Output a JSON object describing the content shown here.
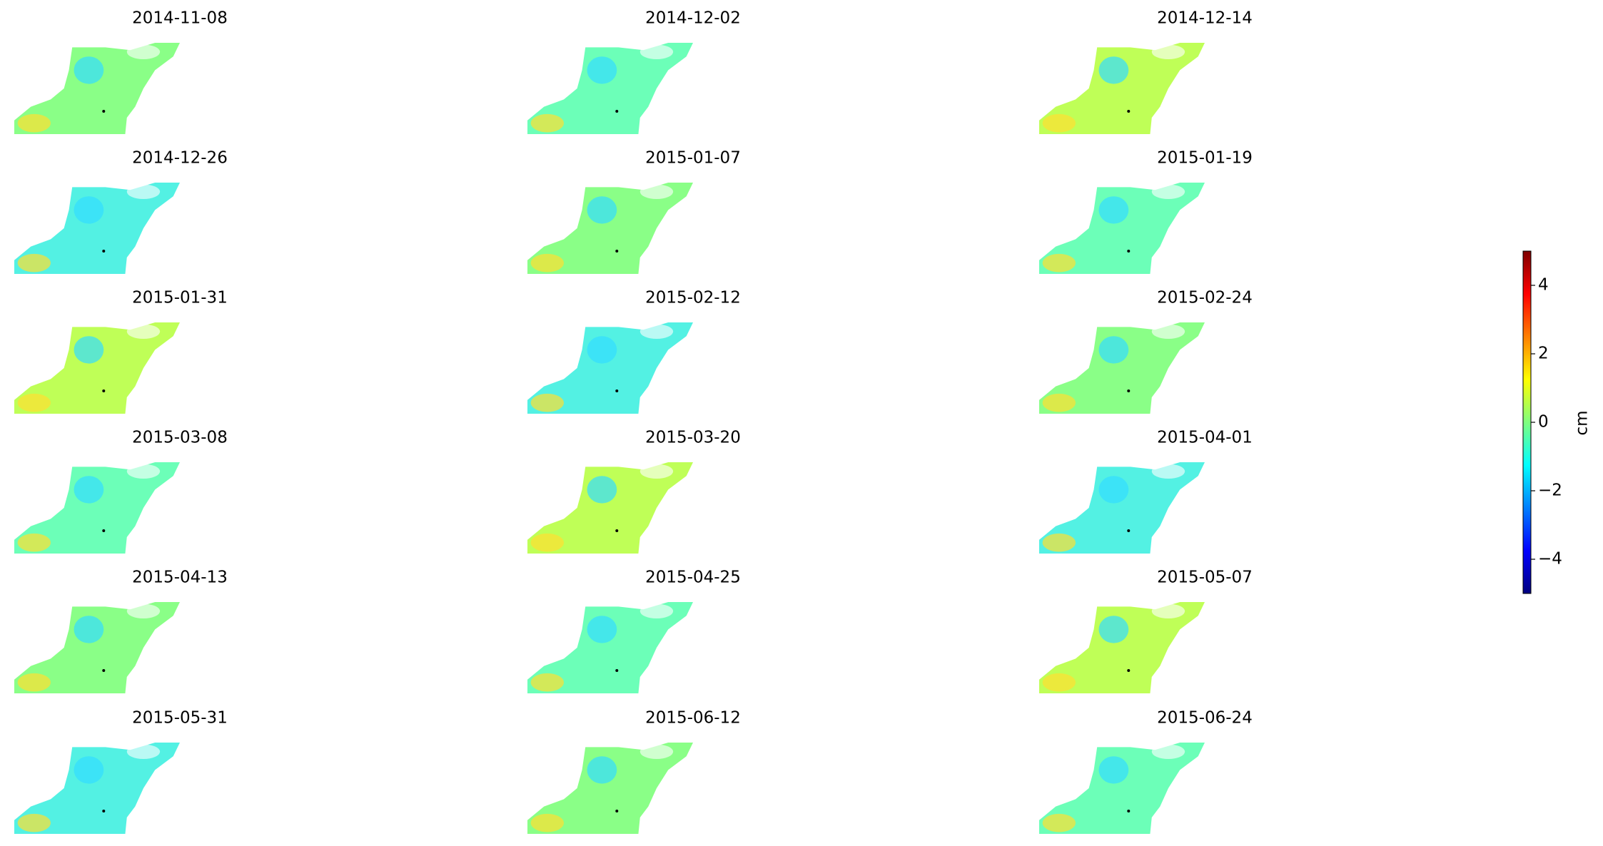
{
  "chart_data": {
    "type": "image-grid",
    "panels": [
      {
        "title": "2014-11-08"
      },
      {
        "title": "2014-12-02"
      },
      {
        "title": "2014-12-14"
      },
      {
        "title": "2014-12-26"
      },
      {
        "title": "2015-01-07"
      },
      {
        "title": "2015-01-19"
      },
      {
        "title": "2015-01-31"
      },
      {
        "title": "2015-02-12"
      },
      {
        "title": "2015-02-24"
      },
      {
        "title": "2015-03-08"
      },
      {
        "title": "2015-03-20"
      },
      {
        "title": "2015-04-01"
      },
      {
        "title": "2015-04-13"
      },
      {
        "title": "2015-04-25"
      },
      {
        "title": "2015-05-07"
      },
      {
        "title": "2015-05-31"
      },
      {
        "title": "2015-06-12"
      },
      {
        "title": "2015-06-24"
      }
    ],
    "colorbar": {
      "label": "cm",
      "colormap": "jet",
      "lim": [
        -5,
        5
      ],
      "ticks": [
        {
          "value": -4,
          "label": "−4"
        },
        {
          "value": -2,
          "label": "−2"
        },
        0,
        2,
        4
      ]
    }
  }
}
